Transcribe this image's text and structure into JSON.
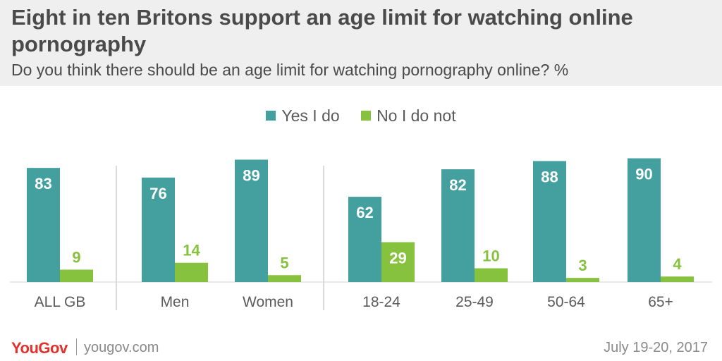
{
  "header": {
    "title": "Eight in ten Britons support an age limit for watching online pornography",
    "subtitle": "Do you think there should be an age limit for watching pornography online? %"
  },
  "footer": {
    "brand": "YouGov",
    "url": "yougov.com",
    "date": "July 19-20, 2017"
  },
  "chart_data": {
    "type": "bar",
    "title": "Eight in ten Britons support an age limit for watching online pornography",
    "subtitle": "Do you think there should be an age limit for watching pornography online? %",
    "categories": [
      "ALL GB",
      "Men",
      "Women",
      "18-24",
      "25-49",
      "50-64",
      "65+"
    ],
    "groups": [
      [
        "ALL GB"
      ],
      [
        "Men",
        "Women"
      ],
      [
        "18-24",
        "25-49",
        "50-64",
        "65+"
      ]
    ],
    "series": [
      {
        "name": "Yes I do",
        "color": "#449f9f",
        "values": [
          83,
          76,
          89,
          62,
          82,
          88,
          90
        ]
      },
      {
        "name": "No I do not",
        "color": "#86c23e",
        "values": [
          9,
          14,
          5,
          29,
          10,
          3,
          4
        ]
      }
    ],
    "ylim": [
      0,
      100
    ],
    "grid": false,
    "legend": "top-center",
    "value_labels": true
  }
}
